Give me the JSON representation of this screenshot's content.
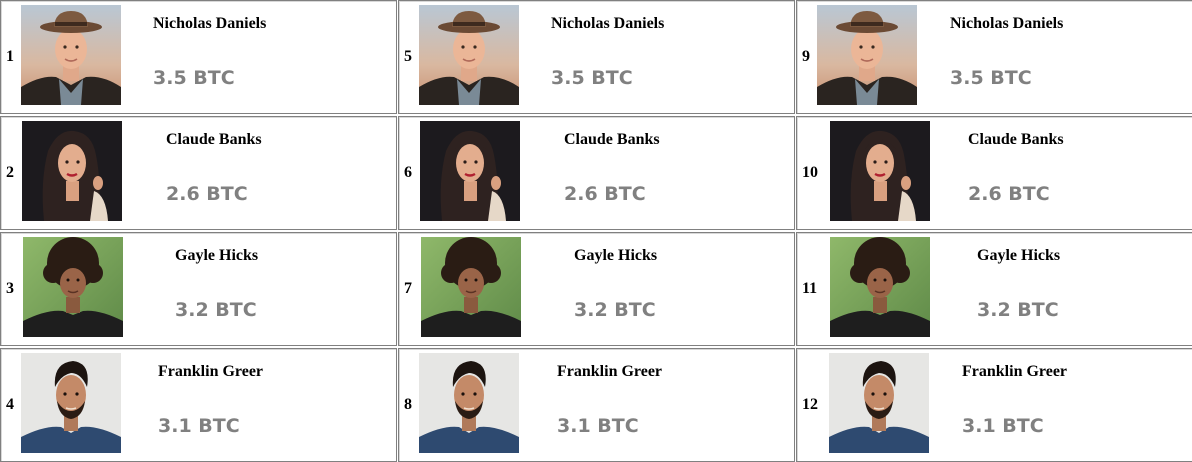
{
  "leaderboard": {
    "cells": [
      {
        "rank": "1",
        "name": "Nicholas Daniels",
        "amount": "3.5 BTC",
        "avatar": "nicholas"
      },
      {
        "rank": "2",
        "name": "Claude Banks",
        "amount": "2.6 BTC",
        "avatar": "claude"
      },
      {
        "rank": "3",
        "name": "Gayle Hicks",
        "amount": "3.2 BTC",
        "avatar": "gayle"
      },
      {
        "rank": "4",
        "name": "Franklin Greer",
        "amount": "3.1 BTC",
        "avatar": "franklin"
      },
      {
        "rank": "5",
        "name": "Nicholas Daniels",
        "amount": "3.5 BTC",
        "avatar": "nicholas"
      },
      {
        "rank": "6",
        "name": "Claude Banks",
        "amount": "2.6 BTC",
        "avatar": "claude"
      },
      {
        "rank": "7",
        "name": "Gayle Hicks",
        "amount": "3.2 BTC",
        "avatar": "gayle"
      },
      {
        "rank": "8",
        "name": "Franklin Greer",
        "amount": "3.1 BTC",
        "avatar": "franklin"
      },
      {
        "rank": "9",
        "name": "Nicholas Daniels",
        "amount": "3.5 BTC",
        "avatar": "nicholas"
      },
      {
        "rank": "10",
        "name": "Claude Banks",
        "amount": "2.6 BTC",
        "avatar": "claude"
      },
      {
        "rank": "11",
        "name": "Gayle Hicks",
        "amount": "3.2 BTC",
        "avatar": "gayle"
      },
      {
        "rank": "12",
        "name": "Franklin Greer",
        "amount": "3.1 BTC",
        "avatar": "franklin"
      }
    ]
  },
  "colors": {
    "amount": "#808080",
    "border": "#808080"
  }
}
